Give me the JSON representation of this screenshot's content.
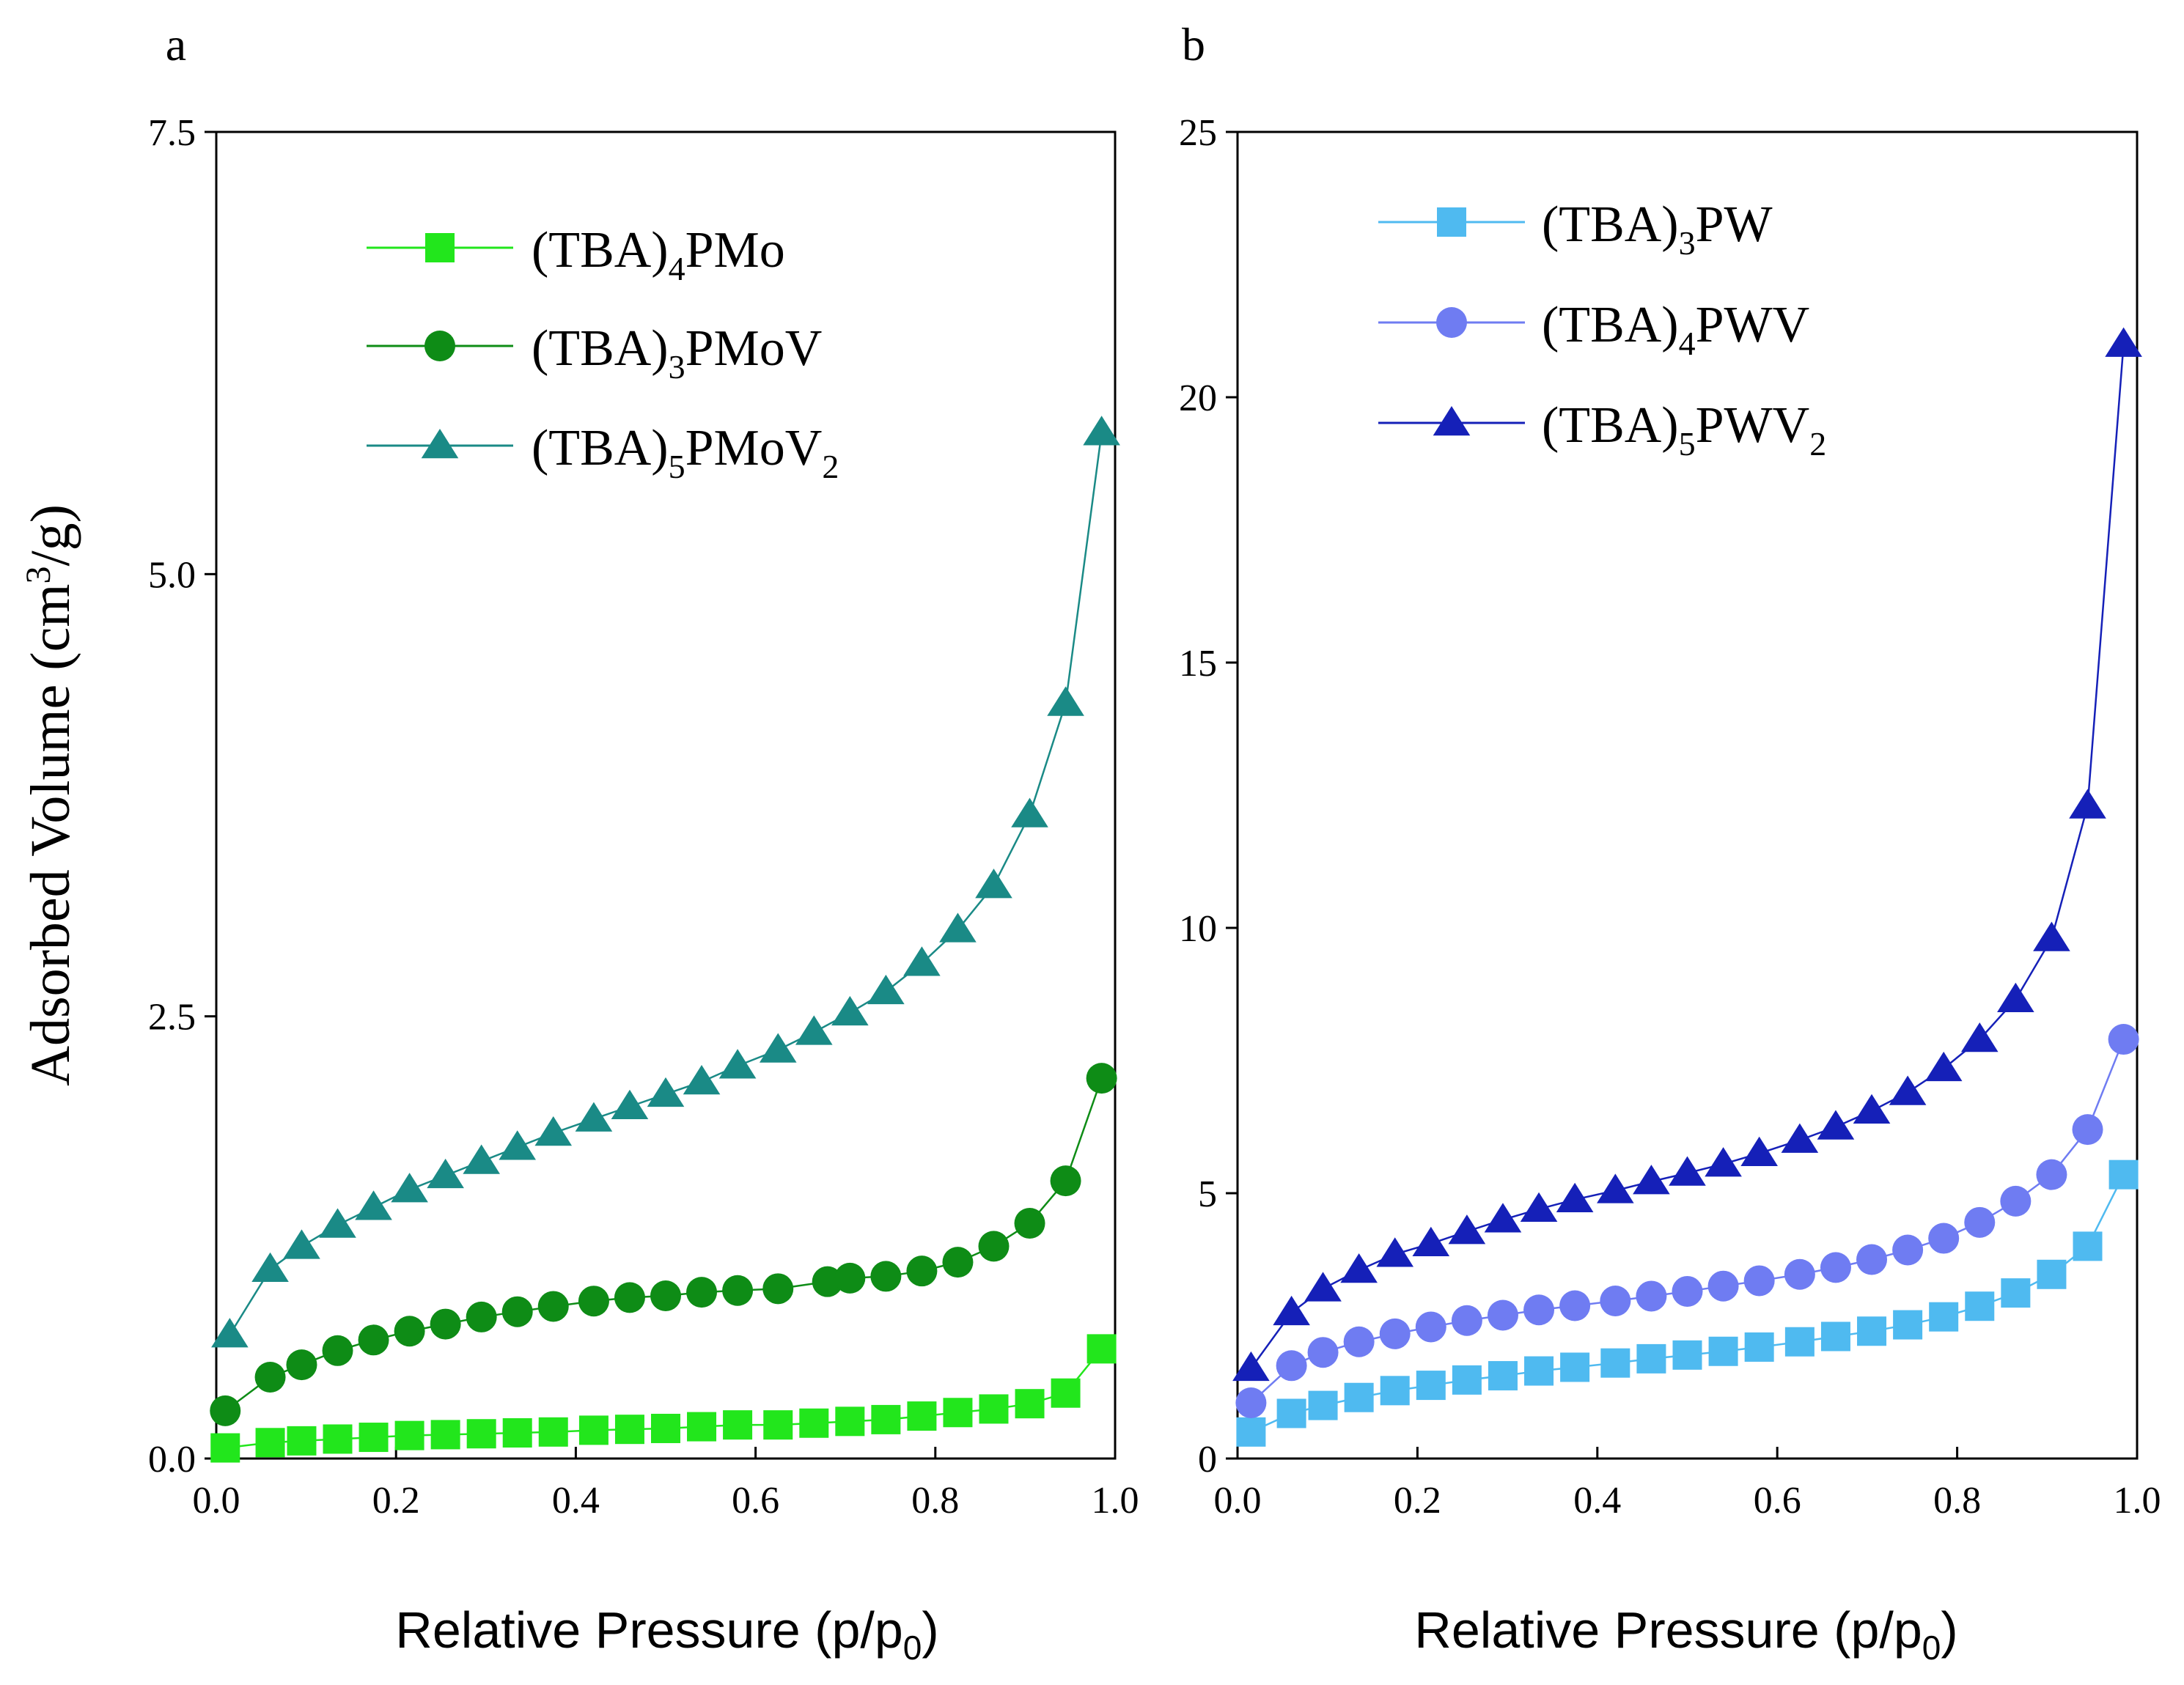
{
  "figure": {
    "panel_labels": [
      "a",
      "b"
    ],
    "colors": {
      "axis": "#000000",
      "pmo": "#22e61c",
      "pmov": "#0e8c16",
      "pmov2": "#1a8a86",
      "pw": "#4fbaf0",
      "pwv": "#6f7cf2",
      "pwv2": "#1520b8"
    }
  },
  "chart_data": [
    {
      "type": "line",
      "panel": "a",
      "title": "",
      "xlabel": "Relative Pressure (p/p",
      "xlabel_sub": "0",
      "xlabel_end": ")",
      "ylabel": "Adsorbed Volume (cm",
      "ylabel_sup": "3",
      "ylabel_end": "/g)",
      "xlim": [
        0,
        1.0
      ],
      "ylim": [
        0,
        7.5
      ],
      "xticks": [
        0.0,
        0.2,
        0.4,
        0.6,
        0.8,
        1.0
      ],
      "xtick_labels": [
        "0.0",
        "0.2",
        "0.4",
        "0.6",
        "0.8",
        "1.0"
      ],
      "yticks": [
        0,
        2.5,
        5.0,
        7.5
      ],
      "ytick_labels": [
        "0.0",
        "2.5",
        "5.0",
        "7.5"
      ],
      "legend_position": "top-left",
      "series": [
        {
          "name": "(TBA)4PMo",
          "label_main": "(TBA)",
          "label_sub": "4",
          "label_rest": "PMo",
          "label_sub2": "",
          "marker": "square",
          "color": "#22e61c",
          "x": [
            0.01,
            0.06,
            0.095,
            0.135,
            0.175,
            0.215,
            0.255,
            0.295,
            0.335,
            0.375,
            0.42,
            0.46,
            0.5,
            0.54,
            0.58,
            0.625,
            0.665,
            0.705,
            0.745,
            0.785,
            0.825,
            0.865,
            0.905,
            0.945,
            0.985
          ],
          "y": [
            0.06,
            0.09,
            0.1,
            0.11,
            0.12,
            0.13,
            0.135,
            0.14,
            0.145,
            0.15,
            0.16,
            0.165,
            0.17,
            0.18,
            0.19,
            0.19,
            0.2,
            0.21,
            0.22,
            0.24,
            0.26,
            0.28,
            0.31,
            0.37,
            0.62
          ]
        },
        {
          "name": "(TBA)3PMoV",
          "label_main": "(TBA)",
          "label_sub": "3",
          "label_rest": "PMoV",
          "label_sub2": "",
          "marker": "circle",
          "color": "#0e8c16",
          "x": [
            0.01,
            0.06,
            0.095,
            0.135,
            0.175,
            0.215,
            0.255,
            0.295,
            0.335,
            0.375,
            0.42,
            0.46,
            0.5,
            0.54,
            0.58,
            0.625,
            0.68,
            0.705,
            0.745,
            0.785,
            0.825,
            0.865,
            0.905,
            0.945,
            0.985
          ],
          "y": [
            0.27,
            0.46,
            0.53,
            0.61,
            0.67,
            0.72,
            0.76,
            0.8,
            0.83,
            0.86,
            0.89,
            0.91,
            0.92,
            0.94,
            0.95,
            0.96,
            1.0,
            1.02,
            1.03,
            1.06,
            1.11,
            1.2,
            1.33,
            1.57,
            2.15
          ]
        },
        {
          "name": "(TBA)5PMoV2",
          "label_main": "(TBA)",
          "label_sub": "5",
          "label_rest": "PMoV",
          "label_sub2": "2",
          "marker": "triangle",
          "color": "#1a8a86",
          "x": [
            0.015,
            0.06,
            0.095,
            0.135,
            0.175,
            0.215,
            0.255,
            0.295,
            0.335,
            0.375,
            0.42,
            0.46,
            0.5,
            0.54,
            0.58,
            0.625,
            0.665,
            0.705,
            0.745,
            0.785,
            0.825,
            0.865,
            0.905,
            0.945,
            0.985
          ],
          "y": [
            0.7,
            1.07,
            1.2,
            1.32,
            1.42,
            1.52,
            1.6,
            1.68,
            1.76,
            1.84,
            1.92,
            1.99,
            2.06,
            2.13,
            2.22,
            2.31,
            2.41,
            2.52,
            2.64,
            2.8,
            2.99,
            3.24,
            3.64,
            4.27,
            5.8
          ]
        }
      ]
    },
    {
      "type": "line",
      "panel": "b",
      "title": "",
      "xlabel": "Relative Pressure (p/p",
      "xlabel_sub": "0",
      "xlabel_end": ")",
      "ylabel": "",
      "xlim": [
        0,
        1.0
      ],
      "ylim": [
        0,
        25
      ],
      "xticks": [
        0.0,
        0.2,
        0.4,
        0.6,
        0.8,
        1.0
      ],
      "xtick_labels": [
        "0.0",
        "0.2",
        "0.4",
        "0.6",
        "0.8",
        "1.0"
      ],
      "yticks": [
        0,
        5,
        10,
        15,
        20,
        25
      ],
      "ytick_labels": [
        "0",
        "5",
        "10",
        "15",
        "20",
        "25"
      ],
      "legend_position": "top-left",
      "series": [
        {
          "name": "(TBA)3PW",
          "label_main": "(TBA)",
          "label_sub": "3",
          "label_rest": "PW",
          "label_sub2": "",
          "marker": "square",
          "color": "#4fbaf0",
          "x": [
            0.015,
            0.06,
            0.095,
            0.135,
            0.175,
            0.215,
            0.255,
            0.295,
            0.335,
            0.375,
            0.42,
            0.46,
            0.5,
            0.54,
            0.58,
            0.625,
            0.665,
            0.705,
            0.745,
            0.785,
            0.825,
            0.865,
            0.905,
            0.945,
            0.985
          ],
          "y": [
            0.5,
            0.85,
            1.0,
            1.15,
            1.28,
            1.38,
            1.48,
            1.56,
            1.65,
            1.72,
            1.8,
            1.88,
            1.95,
            2.02,
            2.1,
            2.2,
            2.3,
            2.4,
            2.52,
            2.67,
            2.87,
            3.12,
            3.47,
            4.0,
            5.35
          ]
        },
        {
          "name": "(TBA)4PWV",
          "label_main": "(TBA)",
          "label_sub": "4",
          "label_rest": "PWV",
          "label_sub2": "",
          "marker": "circle",
          "color": "#6f7cf2",
          "x": [
            0.015,
            0.06,
            0.095,
            0.135,
            0.175,
            0.215,
            0.255,
            0.295,
            0.335,
            0.375,
            0.42,
            0.46,
            0.5,
            0.54,
            0.58,
            0.625,
            0.665,
            0.705,
            0.745,
            0.785,
            0.825,
            0.865,
            0.905,
            0.945,
            0.985
          ],
          "y": [
            1.05,
            1.75,
            2.0,
            2.2,
            2.35,
            2.48,
            2.6,
            2.7,
            2.8,
            2.88,
            2.97,
            3.06,
            3.15,
            3.25,
            3.35,
            3.47,
            3.6,
            3.75,
            3.93,
            4.15,
            4.45,
            4.85,
            5.35,
            6.2,
            7.9
          ]
        },
        {
          "name": "(TBA)5PWV2",
          "label_main": "(TBA)",
          "label_sub": "5",
          "label_rest": "PWV",
          "label_sub2": "2",
          "marker": "triangle",
          "color": "#1520b8",
          "x": [
            0.015,
            0.06,
            0.095,
            0.135,
            0.175,
            0.215,
            0.255,
            0.295,
            0.335,
            0.375,
            0.42,
            0.46,
            0.5,
            0.54,
            0.58,
            0.625,
            0.665,
            0.705,
            0.745,
            0.785,
            0.825,
            0.865,
            0.905,
            0.945,
            0.985
          ],
          "y": [
            1.7,
            2.75,
            3.2,
            3.55,
            3.85,
            4.05,
            4.28,
            4.5,
            4.7,
            4.88,
            5.05,
            5.22,
            5.38,
            5.55,
            5.75,
            6.0,
            6.25,
            6.55,
            6.9,
            7.35,
            7.9,
            8.65,
            9.8,
            12.3,
            21.0
          ]
        }
      ]
    }
  ]
}
